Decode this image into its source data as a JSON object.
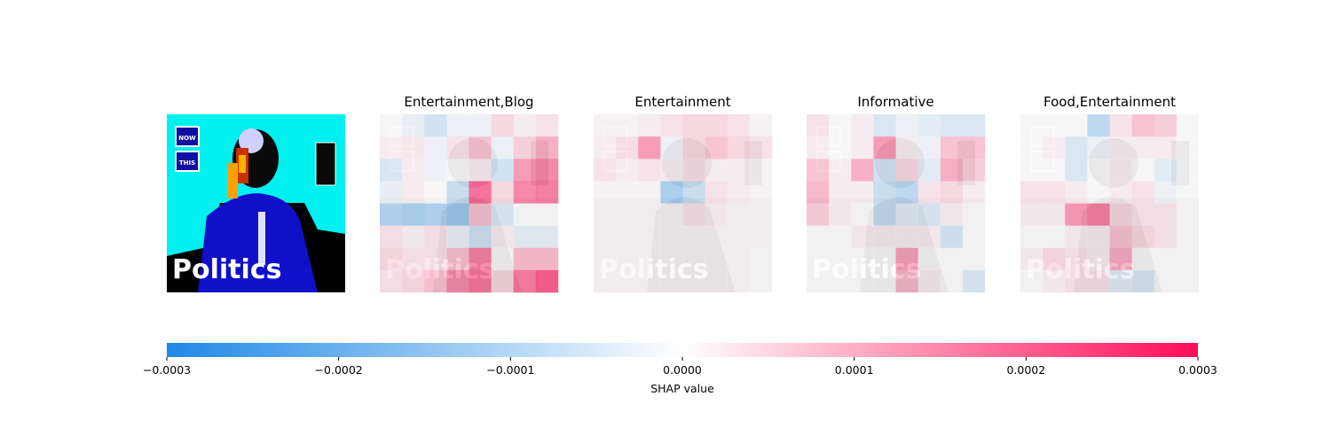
{
  "chart_data": {
    "type": "heatmap",
    "title": "",
    "grid": false,
    "input_image": {
      "overlay_texts": [
        "NOW",
        "THIS",
        "Politics"
      ]
    },
    "panels": [
      {
        "title": "Entertainment,Blog",
        "values": [
          [
            0.0,
            -3e-05,
            -8e-05,
            -2e-05,
            -2e-05,
            6e-05,
            2e-05,
            4e-05
          ],
          [
            2e-05,
            3e-05,
            -2e-05,
            4e-05,
            0.0001,
            -2e-05,
            8e-05,
            0.00014
          ],
          [
            -6e-05,
            2e-05,
            -2e-05,
            0.0,
            2e-05,
            -8e-05,
            0.00018,
            0.00022
          ],
          [
            -3e-05,
            2e-05,
            0.0,
            -0.0001,
            0.00026,
            6e-05,
            0.00022,
            0.00024
          ],
          [
            -0.00014,
            -0.00016,
            -0.00014,
            -0.00018,
            0.0001,
            -6e-05,
            0.0,
            0.0
          ],
          [
            4e-05,
            2e-05,
            4e-05,
            -2e-05,
            -8e-05,
            2e-05,
            -4e-05,
            -4e-05
          ],
          [
            6e-05,
            4e-05,
            4e-05,
            0.0001,
            0.00022,
            0.0,
            0.00012,
            0.00012
          ],
          [
            4e-05,
            6e-05,
            0.0001,
            0.0002,
            0.00024,
            6e-05,
            0.00024,
            0.0003
          ]
        ]
      },
      {
        "title": "Entertainment",
        "values": [
          [
            1e-05,
            1e-05,
            2e-05,
            4e-05,
            6e-05,
            6e-05,
            4e-05,
            1e-05
          ],
          [
            2e-05,
            5e-05,
            0.00018,
            -2e-05,
            6e-05,
            0.0001,
            6e-05,
            4e-05
          ],
          [
            4e-05,
            2e-05,
            4e-05,
            2e-05,
            5e-05,
            2e-05,
            2e-05,
            1e-05
          ],
          [
            1e-05,
            1e-05,
            1e-05,
            -0.00016,
            -0.0001,
            4e-05,
            2e-05,
            1e-05
          ],
          [
            1e-05,
            1e-05,
            1e-05,
            1e-05,
            4e-05,
            2e-05,
            1e-05,
            1e-05
          ],
          [
            1e-05,
            1e-05,
            1e-05,
            1e-05,
            1e-05,
            1e-05,
            1e-05,
            1e-05
          ],
          [
            1e-05,
            1e-05,
            1e-05,
            1e-05,
            1e-05,
            1e-05,
            1e-05,
            0.0
          ],
          [
            1e-05,
            1e-05,
            1e-05,
            1e-05,
            1e-05,
            1e-05,
            1e-05,
            0.0
          ]
        ]
      },
      {
        "title": "Informative",
        "values": [
          [
            4e-05,
            0.0,
            2e-05,
            -6e-05,
            -2e-05,
            -4e-05,
            -6e-05,
            -6e-05
          ],
          [
            2e-05,
            0.0,
            2e-05,
            0.00018,
            2e-05,
            -2e-05,
            0.0001,
            0.0001
          ],
          [
            0.0001,
            2e-05,
            0.00014,
            -8e-05,
            6e-05,
            -4e-05,
            0.00014,
            8e-05
          ],
          [
            0.00012,
            2e-05,
            2e-05,
            -0.0001,
            -0.00012,
            4e-05,
            6e-05,
            2e-05
          ],
          [
            8e-05,
            2e-05,
            0.0,
            -0.0001,
            -4e-05,
            -6e-05,
            2e-05,
            0.0
          ],
          [
            0.0,
            0.0,
            2e-05,
            2e-05,
            2e-05,
            2e-05,
            -8e-05,
            0.0
          ],
          [
            0.0,
            0.0,
            0.0,
            0.0,
            0.00016,
            0.0,
            0.0,
            0.0
          ],
          [
            0.0,
            0.0,
            0.0,
            0.0,
            0.00012,
            2e-05,
            0.0,
            -6e-05
          ]
        ]
      },
      {
        "title": "Food,Entertainment",
        "values": [
          [
            0.0,
            0.0,
            0.0,
            -0.00012,
            4e-05,
            0.0001,
            8e-05,
            0.0
          ],
          [
            0.0,
            2e-05,
            -6e-05,
            -2e-05,
            2e-05,
            2e-05,
            2e-05,
            0.0
          ],
          [
            0.0,
            0.0,
            -6e-05,
            0.0,
            2e-05,
            0.0,
            -4e-05,
            0.0
          ],
          [
            4e-05,
            4e-05,
            2e-05,
            0.0,
            2e-05,
            4e-05,
            -2e-05,
            0.0
          ],
          [
            2e-05,
            2e-05,
            0.00018,
            0.00022,
            6e-05,
            4e-05,
            4e-05,
            0.0
          ],
          [
            0.0,
            0.0,
            2e-05,
            2e-05,
            0.0001,
            6e-05,
            4e-05,
            0.0
          ],
          [
            2e-05,
            6e-05,
            4e-05,
            2e-05,
            0.00014,
            0.0,
            0.0,
            0.0
          ],
          [
            0.0,
            2e-05,
            4e-05,
            4e-05,
            -4e-05,
            -6e-05,
            0.0,
            0.0
          ]
        ]
      }
    ],
    "colorbar": {
      "label": "SHAP value",
      "range": [
        -0.0003,
        0.0003
      ],
      "ticks": [
        -0.0003,
        -0.0002,
        -0.0001,
        0.0,
        0.0001,
        0.0002,
        0.0003
      ],
      "tick_labels": [
        "−0.0003",
        "−0.0002",
        "−0.0001",
        "0.0000",
        "0.0001",
        "0.0002",
        "0.0003"
      ],
      "colors": {
        "negative": "#1e88e5",
        "zero": "#ffffff",
        "positive": "#ff0d57"
      }
    }
  }
}
